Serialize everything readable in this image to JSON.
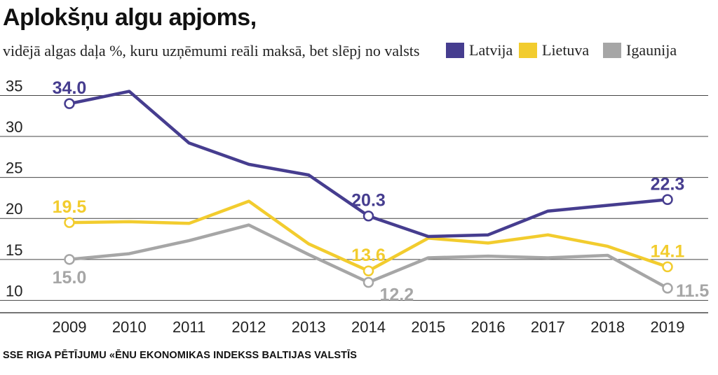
{
  "title": "Aplokšņu algu apjoms,",
  "subtitle": "vidējā algas daļa %, kuru uzņēmumi reāli maksā, bet slēpj no valsts",
  "source": "SSE RIGA PĒTĪJUMU «ĒNU EKONOMIKAS INDEKSS BALTIJAS VALSTĪS",
  "legend": [
    {
      "name": "Latvija",
      "color": "#463d8f"
    },
    {
      "name": "Lietuva",
      "color": "#f2cc2e"
    },
    {
      "name": "Igaunija",
      "color": "#a6a6a6"
    }
  ],
  "chart_data": {
    "type": "line",
    "title": "Aplokšņu algu apjoms,",
    "subtitle": "vidējā algas daļa %, kuru uzņēmumi reāli maksā, bet slēpj no valsts",
    "x": [
      2009,
      2010,
      2011,
      2012,
      2013,
      2014,
      2015,
      2016,
      2017,
      2018,
      2019
    ],
    "xlabel": "",
    "ylabel": "",
    "ylim": [
      8.5,
      37
    ],
    "yticks": [
      10,
      15,
      20,
      25,
      30,
      35
    ],
    "grid": true,
    "legend_position": "top-right",
    "series": [
      {
        "name": "Latvija",
        "color": "#463d8f",
        "values": [
          34.0,
          35.5,
          29.2,
          26.6,
          25.3,
          20.3,
          17.8,
          18.0,
          20.9,
          21.6,
          22.3
        ]
      },
      {
        "name": "Lietuva",
        "color": "#f2cc2e",
        "values": [
          19.5,
          19.6,
          19.4,
          22.1,
          16.9,
          13.6,
          17.6,
          17.0,
          18.0,
          16.6,
          14.1
        ]
      },
      {
        "name": "Igaunija",
        "color": "#a6a6a6",
        "values": [
          15.0,
          15.7,
          17.3,
          19.2,
          15.6,
          12.2,
          15.2,
          15.4,
          15.2,
          15.5,
          11.5
        ]
      }
    ],
    "annotations": [
      {
        "series": "Latvija",
        "x": 2009,
        "label": "34.0",
        "pos": "above"
      },
      {
        "series": "Latvija",
        "x": 2014,
        "label": "20.3",
        "pos": "above"
      },
      {
        "series": "Latvija",
        "x": 2019,
        "label": "22.3",
        "pos": "above"
      },
      {
        "series": "Lietuva",
        "x": 2009,
        "label": "19.5",
        "pos": "above"
      },
      {
        "series": "Lietuva",
        "x": 2014,
        "label": "13.6",
        "pos": "above"
      },
      {
        "series": "Lietuva",
        "x": 2019,
        "label": "14.1",
        "pos": "above"
      },
      {
        "series": "Igaunija",
        "x": 2009,
        "label": "15.0",
        "pos": "below"
      },
      {
        "series": "Igaunija",
        "x": 2014,
        "label": "12.2",
        "pos": "below-right"
      },
      {
        "series": "Igaunija",
        "x": 2019,
        "label": "11.5",
        "pos": "right"
      }
    ]
  }
}
